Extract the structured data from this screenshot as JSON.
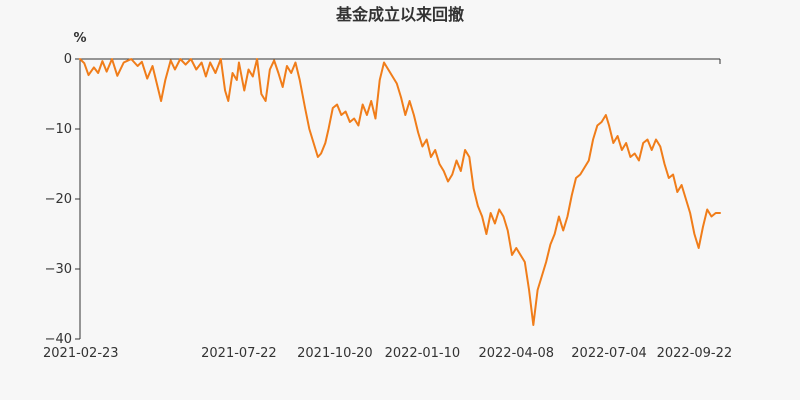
{
  "chart_data": {
    "type": "line",
    "title": "基金成立以来回撤",
    "ylabel": "%",
    "xlabel": "",
    "x_tick_labels": [
      "2021-02-23",
      "2021-07-22",
      "2021-10-20",
      "2022-01-10",
      "2022-04-08",
      "2022-07-04",
      "2022-09-22"
    ],
    "ylim": [
      -40,
      0
    ],
    "y_ticks": [
      0,
      -10,
      -20,
      -30,
      -40
    ],
    "y_tick_labels": [
      "0",
      "−10",
      "−20",
      "−30",
      "−40"
    ],
    "grid": false,
    "legend": "none",
    "series": [
      {
        "color": "#f07d1a",
        "points": [
          [
            "2021-02-23",
            0
          ],
          [
            "2021-02-27",
            -0.6
          ],
          [
            "2021-03-03",
            -2.3
          ],
          [
            "2021-03-08",
            -1.2
          ],
          [
            "2021-03-12",
            -2.0
          ],
          [
            "2021-03-16",
            -0.3
          ],
          [
            "2021-03-20",
            -1.8
          ],
          [
            "2021-03-25",
            0
          ],
          [
            "2021-03-30",
            -2.4
          ],
          [
            "2021-04-05",
            -0.5
          ],
          [
            "2021-04-12",
            0
          ],
          [
            "2021-04-18",
            -1.0
          ],
          [
            "2021-04-22",
            -0.4
          ],
          [
            "2021-04-27",
            -2.8
          ],
          [
            "2021-05-02",
            -1.0
          ],
          [
            "2021-05-06",
            -3.5
          ],
          [
            "2021-05-10",
            -6.0
          ],
          [
            "2021-05-14",
            -3.0
          ],
          [
            "2021-05-19",
            -0.2
          ],
          [
            "2021-05-23",
            -1.5
          ],
          [
            "2021-05-28",
            0
          ],
          [
            "2021-06-02",
            -0.8
          ],
          [
            "2021-06-07",
            0
          ],
          [
            "2021-06-12",
            -1.5
          ],
          [
            "2021-06-17",
            -0.5
          ],
          [
            "2021-06-21",
            -2.5
          ],
          [
            "2021-06-25",
            -0.5
          ],
          [
            "2021-06-30",
            -2.0
          ],
          [
            "2021-07-05",
            0
          ],
          [
            "2021-07-09",
            -4.5
          ],
          [
            "2021-07-12",
            -6.0
          ],
          [
            "2021-07-16",
            -2.0
          ],
          [
            "2021-07-20",
            -3.0
          ],
          [
            "2021-07-22",
            -0.5
          ],
          [
            "2021-07-27",
            -4.5
          ],
          [
            "2021-07-31",
            -1.5
          ],
          [
            "2021-08-04",
            -2.5
          ],
          [
            "2021-08-08",
            0
          ],
          [
            "2021-08-12",
            -5.0
          ],
          [
            "2021-08-16",
            -6.0
          ],
          [
            "2021-08-20",
            -1.5
          ],
          [
            "2021-08-24",
            -0.2
          ],
          [
            "2021-08-28",
            -2.0
          ],
          [
            "2021-09-01",
            -4.0
          ],
          [
            "2021-09-05",
            -1.0
          ],
          [
            "2021-09-09",
            -2.0
          ],
          [
            "2021-09-13",
            -0.5
          ],
          [
            "2021-09-17",
            -3.0
          ],
          [
            "2021-09-22",
            -7.0
          ],
          [
            "2021-09-26",
            -10.0
          ],
          [
            "2021-09-30",
            -12.0
          ],
          [
            "2021-10-04",
            -14.0
          ],
          [
            "2021-10-07",
            -13.5
          ],
          [
            "2021-10-11",
            -12.0
          ],
          [
            "2021-10-14",
            -10.0
          ],
          [
            "2021-10-18",
            -7.0
          ],
          [
            "2021-10-22",
            -6.5
          ],
          [
            "2021-10-26",
            -8.0
          ],
          [
            "2021-10-30",
            -7.5
          ],
          [
            "2021-11-03",
            -9.0
          ],
          [
            "2021-11-07",
            -8.5
          ],
          [
            "2021-11-11",
            -9.5
          ],
          [
            "2021-11-15",
            -6.5
          ],
          [
            "2021-11-19",
            -8.0
          ],
          [
            "2021-11-23",
            -6.0
          ],
          [
            "2021-11-27",
            -8.5
          ],
          [
            "2021-12-01",
            -3.0
          ],
          [
            "2021-12-05",
            -0.5
          ],
          [
            "2021-12-09",
            -1.5
          ],
          [
            "2021-12-13",
            -2.5
          ],
          [
            "2021-12-17",
            -3.5
          ],
          [
            "2021-12-21",
            -5.5
          ],
          [
            "2021-12-25",
            -8.0
          ],
          [
            "2021-12-29",
            -6.0
          ],
          [
            "2022-01-02",
            -8.0
          ],
          [
            "2022-01-06",
            -10.5
          ],
          [
            "2022-01-10",
            -12.5
          ],
          [
            "2022-01-14",
            -11.5
          ],
          [
            "2022-01-18",
            -14.0
          ],
          [
            "2022-01-22",
            -13.0
          ],
          [
            "2022-01-26",
            -15.0
          ],
          [
            "2022-01-30",
            -16.0
          ],
          [
            "2022-02-03",
            -17.5
          ],
          [
            "2022-02-07",
            -16.5
          ],
          [
            "2022-02-11",
            -14.5
          ],
          [
            "2022-02-15",
            -16.0
          ],
          [
            "2022-02-19",
            -13.0
          ],
          [
            "2022-02-23",
            -14.0
          ],
          [
            "2022-02-27",
            -18.5
          ],
          [
            "2022-03-03",
            -21.0
          ],
          [
            "2022-03-07",
            -22.5
          ],
          [
            "2022-03-11",
            -25.0
          ],
          [
            "2022-03-15",
            -22.0
          ],
          [
            "2022-03-19",
            -23.5
          ],
          [
            "2022-03-23",
            -21.5
          ],
          [
            "2022-03-27",
            -22.5
          ],
          [
            "2022-03-31",
            -24.5
          ],
          [
            "2022-04-04",
            -28.0
          ],
          [
            "2022-04-08",
            -27.0
          ],
          [
            "2022-04-12",
            -28.0
          ],
          [
            "2022-04-16",
            -29.0
          ],
          [
            "2022-04-20",
            -33.0
          ],
          [
            "2022-04-24",
            -38.0
          ],
          [
            "2022-04-28",
            -33.0
          ],
          [
            "2022-05-02",
            -31.0
          ],
          [
            "2022-05-06",
            -29.0
          ],
          [
            "2022-05-10",
            -26.5
          ],
          [
            "2022-05-14",
            -25.0
          ],
          [
            "2022-05-18",
            -22.5
          ],
          [
            "2022-05-22",
            -24.5
          ],
          [
            "2022-05-26",
            -22.5
          ],
          [
            "2022-05-30",
            -19.5
          ],
          [
            "2022-06-03",
            -17.0
          ],
          [
            "2022-06-07",
            -16.5
          ],
          [
            "2022-06-11",
            -15.5
          ],
          [
            "2022-06-15",
            -14.5
          ],
          [
            "2022-06-19",
            -11.5
          ],
          [
            "2022-06-23",
            -9.5
          ],
          [
            "2022-06-27",
            -9.0
          ],
          [
            "2022-07-01",
            -8.0
          ],
          [
            "2022-07-04",
            -9.5
          ],
          [
            "2022-07-08",
            -12.0
          ],
          [
            "2022-07-12",
            -11.0
          ],
          [
            "2022-07-16",
            -13.0
          ],
          [
            "2022-07-20",
            -12.0
          ],
          [
            "2022-07-24",
            -14.0
          ],
          [
            "2022-07-28",
            -13.5
          ],
          [
            "2022-08-01",
            -14.5
          ],
          [
            "2022-08-05",
            -12.0
          ],
          [
            "2022-08-09",
            -11.5
          ],
          [
            "2022-08-13",
            -13.0
          ],
          [
            "2022-08-17",
            -11.5
          ],
          [
            "2022-08-21",
            -12.5
          ],
          [
            "2022-08-25",
            -15.0
          ],
          [
            "2022-08-29",
            -17.0
          ],
          [
            "2022-09-02",
            -16.5
          ],
          [
            "2022-09-06",
            -19.0
          ],
          [
            "2022-09-10",
            -18.0
          ],
          [
            "2022-09-14",
            -20.0
          ],
          [
            "2022-09-18",
            -22.0
          ],
          [
            "2022-09-22",
            -25.0
          ],
          [
            "2022-09-26",
            -27.0
          ],
          [
            "2022-09-30",
            -24.0
          ],
          [
            "2022-10-04",
            -21.5
          ],
          [
            "2022-10-08",
            -22.5
          ],
          [
            "2022-10-12",
            -22.0
          ],
          [
            "2022-10-16",
            -22.0
          ]
        ]
      }
    ]
  }
}
